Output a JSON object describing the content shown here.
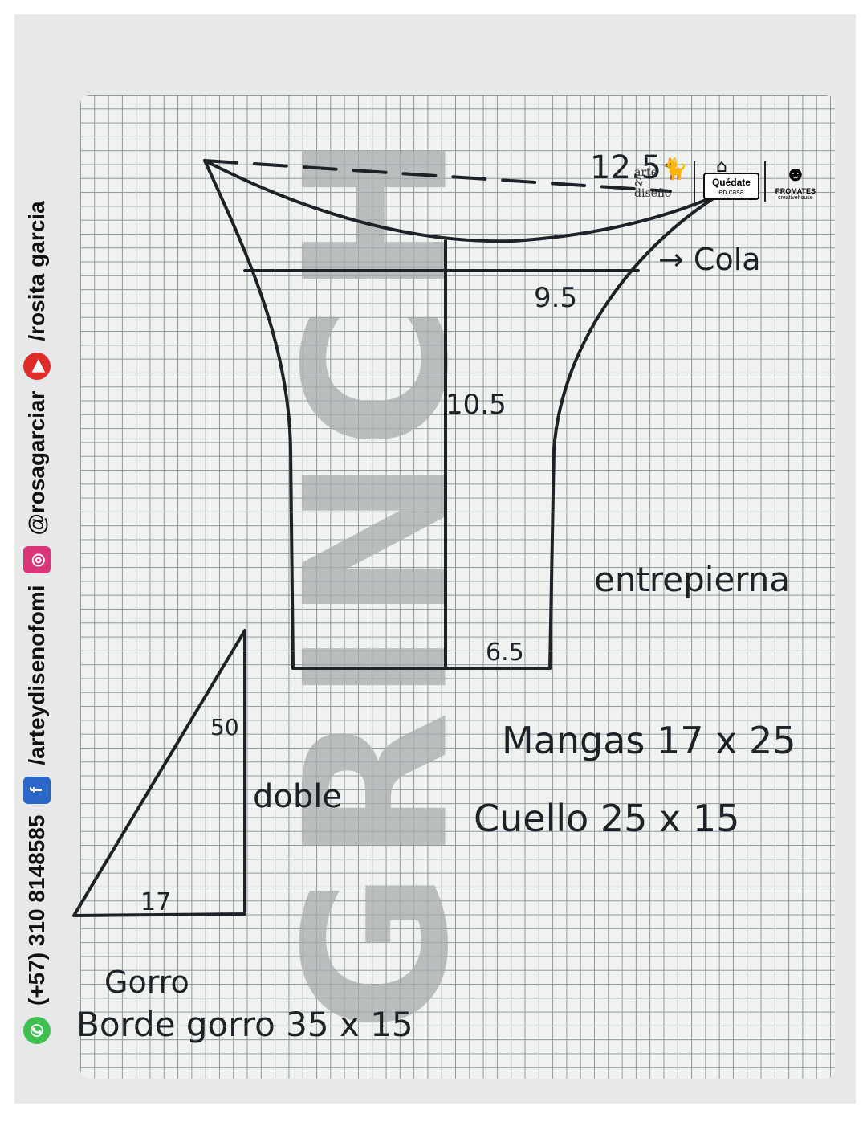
{
  "contact": {
    "phone": "(+57) 310 8148585",
    "facebook": "/arteydisenofomi",
    "instagram": "@rosagarciar",
    "youtube": "/rosita garcia"
  },
  "watermark": "GRINCH",
  "logos": {
    "arte_line1": "arte",
    "arte_line2": "&",
    "arte_line3": "diseño",
    "quedate_title": "Quédate",
    "quedate_sub": "en casa",
    "promates_title": "PROMATES",
    "promates_sub": "creativehouse"
  },
  "pattern": {
    "top_width": "12.5",
    "cola_label": "→ Cola",
    "mid_width": "9.5",
    "height": "10.5",
    "bottom_width": "6.5",
    "entrepierna_label": "entrepierna"
  },
  "gorro": {
    "height": "50",
    "base": "17",
    "fold_label": "doble",
    "title": "Gorro",
    "borde": "Borde gorro  35 x 15"
  },
  "pieces": {
    "mangas": "Mangas  17 x 25",
    "cuello": "Cuello  25 x 15"
  },
  "colors": {
    "ink": "#1e2226",
    "grid": "#8d9496",
    "whatsapp": "#3fbf4f",
    "facebook": "#2a67c9",
    "instagram": "#d9367a",
    "youtube": "#e02b2b"
  }
}
